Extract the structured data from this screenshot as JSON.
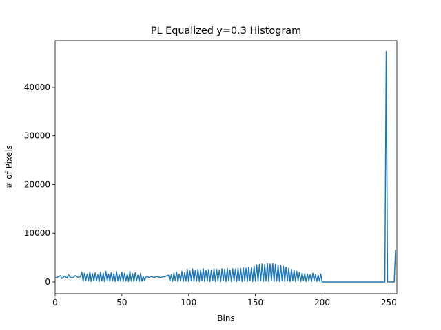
{
  "chart_data": {
    "type": "line",
    "title": "PL Equalized y=0.3 Histogram",
    "xlabel": "Bins",
    "ylabel": "# of Pixels",
    "color": "#1f77b4",
    "xlim": [
      0,
      256
    ],
    "ylim": [
      -2400,
      49600
    ],
    "xticks": [
      0,
      50,
      100,
      150,
      200,
      250
    ],
    "yticks": [
      0,
      10000,
      20000,
      30000,
      40000
    ],
    "x": [
      0,
      1,
      2,
      3,
      4,
      5,
      6,
      7,
      8,
      9,
      10,
      11,
      12,
      13,
      14,
      15,
      16,
      17,
      18,
      19,
      20,
      21,
      22,
      23,
      24,
      25,
      26,
      27,
      28,
      29,
      30,
      31,
      32,
      33,
      34,
      35,
      36,
      37,
      38,
      39,
      40,
      41,
      42,
      43,
      44,
      45,
      46,
      47,
      48,
      49,
      50,
      51,
      52,
      53,
      54,
      55,
      56,
      57,
      58,
      59,
      60,
      61,
      62,
      63,
      64,
      65,
      66,
      67,
      68,
      69,
      70,
      71,
      72,
      73,
      74,
      75,
      76,
      77,
      78,
      79,
      80,
      81,
      82,
      83,
      84,
      85,
      86,
      87,
      88,
      89,
      90,
      91,
      92,
      93,
      94,
      95,
      96,
      97,
      98,
      99,
      100,
      101,
      102,
      103,
      104,
      105,
      106,
      107,
      108,
      109,
      110,
      111,
      112,
      113,
      114,
      115,
      116,
      117,
      118,
      119,
      120,
      121,
      122,
      123,
      124,
      125,
      126,
      127,
      128,
      129,
      130,
      131,
      132,
      133,
      134,
      135,
      136,
      137,
      138,
      139,
      140,
      141,
      142,
      143,
      144,
      145,
      146,
      147,
      148,
      149,
      150,
      151,
      152,
      153,
      154,
      155,
      156,
      157,
      158,
      159,
      160,
      161,
      162,
      163,
      164,
      165,
      166,
      167,
      168,
      169,
      170,
      171,
      172,
      173,
      174,
      175,
      176,
      177,
      178,
      179,
      180,
      181,
      182,
      183,
      184,
      185,
      186,
      187,
      188,
      189,
      190,
      191,
      192,
      193,
      194,
      195,
      196,
      197,
      198,
      199,
      200,
      201,
      202,
      203,
      204,
      205,
      206,
      207,
      208,
      209,
      210,
      211,
      212,
      213,
      214,
      215,
      216,
      217,
      218,
      219,
      220,
      221,
      222,
      223,
      224,
      225,
      226,
      227,
      228,
      229,
      230,
      231,
      232,
      233,
      234,
      235,
      236,
      237,
      238,
      239,
      240,
      241,
      242,
      243,
      244,
      245,
      246,
      247,
      248,
      249,
      250,
      251,
      252,
      253,
      254,
      255
    ],
    "values": [
      800,
      900,
      1000,
      1100,
      1300,
      700,
      900,
      1200,
      1000,
      800,
      1500,
      1000,
      900,
      800,
      1000,
      1300,
      1200,
      900,
      1000,
      1100,
      2000,
      100,
      1800,
      300,
      1600,
      200,
      2100,
      100,
      1700,
      200,
      1900,
      300,
      1500,
      100,
      2000,
      200,
      1800,
      100,
      2200,
      300,
      1600,
      100,
      1900,
      200,
      1700,
      100,
      2100,
      300,
      1500,
      200,
      2000,
      100,
      1800,
      200,
      1600,
      100,
      2200,
      200,
      1700,
      100,
      1900,
      300,
      1400,
      100,
      1800,
      200,
      1100,
      300,
      1000,
      1200,
      900,
      1000,
      1100,
      1000,
      900,
      1000,
      1100,
      1000,
      1000,
      900,
      1000,
      1100,
      1000,
      1200,
      1300,
      1400,
      200,
      1500,
      100,
      1800,
      300,
      2000,
      100,
      1600,
      200,
      2200,
      100,
      1900,
      200,
      2600,
      100,
      2300,
      300,
      2700,
      100,
      2400,
      200,
      2600,
      100,
      2500,
      300,
      2700,
      100,
      2400,
      200,
      2600,
      100,
      2500,
      300,
      2700,
      100,
      2600,
      200,
      2500,
      100,
      2700,
      300,
      2600,
      100,
      2800,
      200,
      2500,
      100,
      2700,
      200,
      2600,
      100,
      2800,
      300,
      2700,
      100,
      2900,
      200,
      2800,
      100,
      3000,
      300,
      2900,
      100,
      3200,
      200,
      3500,
      100,
      3600,
      300,
      3700,
      100,
      3600,
      200,
      3800,
      100,
      3700,
      300,
      3800,
      100,
      3600,
      200,
      3500,
      100,
      3400,
      300,
      3200,
      100,
      3000,
      200,
      2800,
      100,
      2600,
      300,
      2400,
      100,
      2200,
      200,
      2000,
      100,
      1800,
      300,
      1700,
      100,
      1600,
      200,
      1500,
      100,
      1800,
      300,
      1500,
      100,
      1400,
      200,
      1600,
      0,
      0,
      0,
      0,
      0,
      0,
      0,
      0,
      0,
      0,
      0,
      0,
      0,
      0,
      0,
      0,
      0,
      0,
      0,
      0,
      0,
      0,
      0,
      0,
      0,
      0,
      0,
      0,
      0,
      0,
      0,
      0,
      0,
      0,
      0,
      0,
      0,
      0,
      0,
      0,
      0,
      0,
      0,
      0,
      0,
      0,
      0,
      0,
      47400,
      0,
      0,
      0,
      0,
      0,
      0,
      6600
    ]
  }
}
